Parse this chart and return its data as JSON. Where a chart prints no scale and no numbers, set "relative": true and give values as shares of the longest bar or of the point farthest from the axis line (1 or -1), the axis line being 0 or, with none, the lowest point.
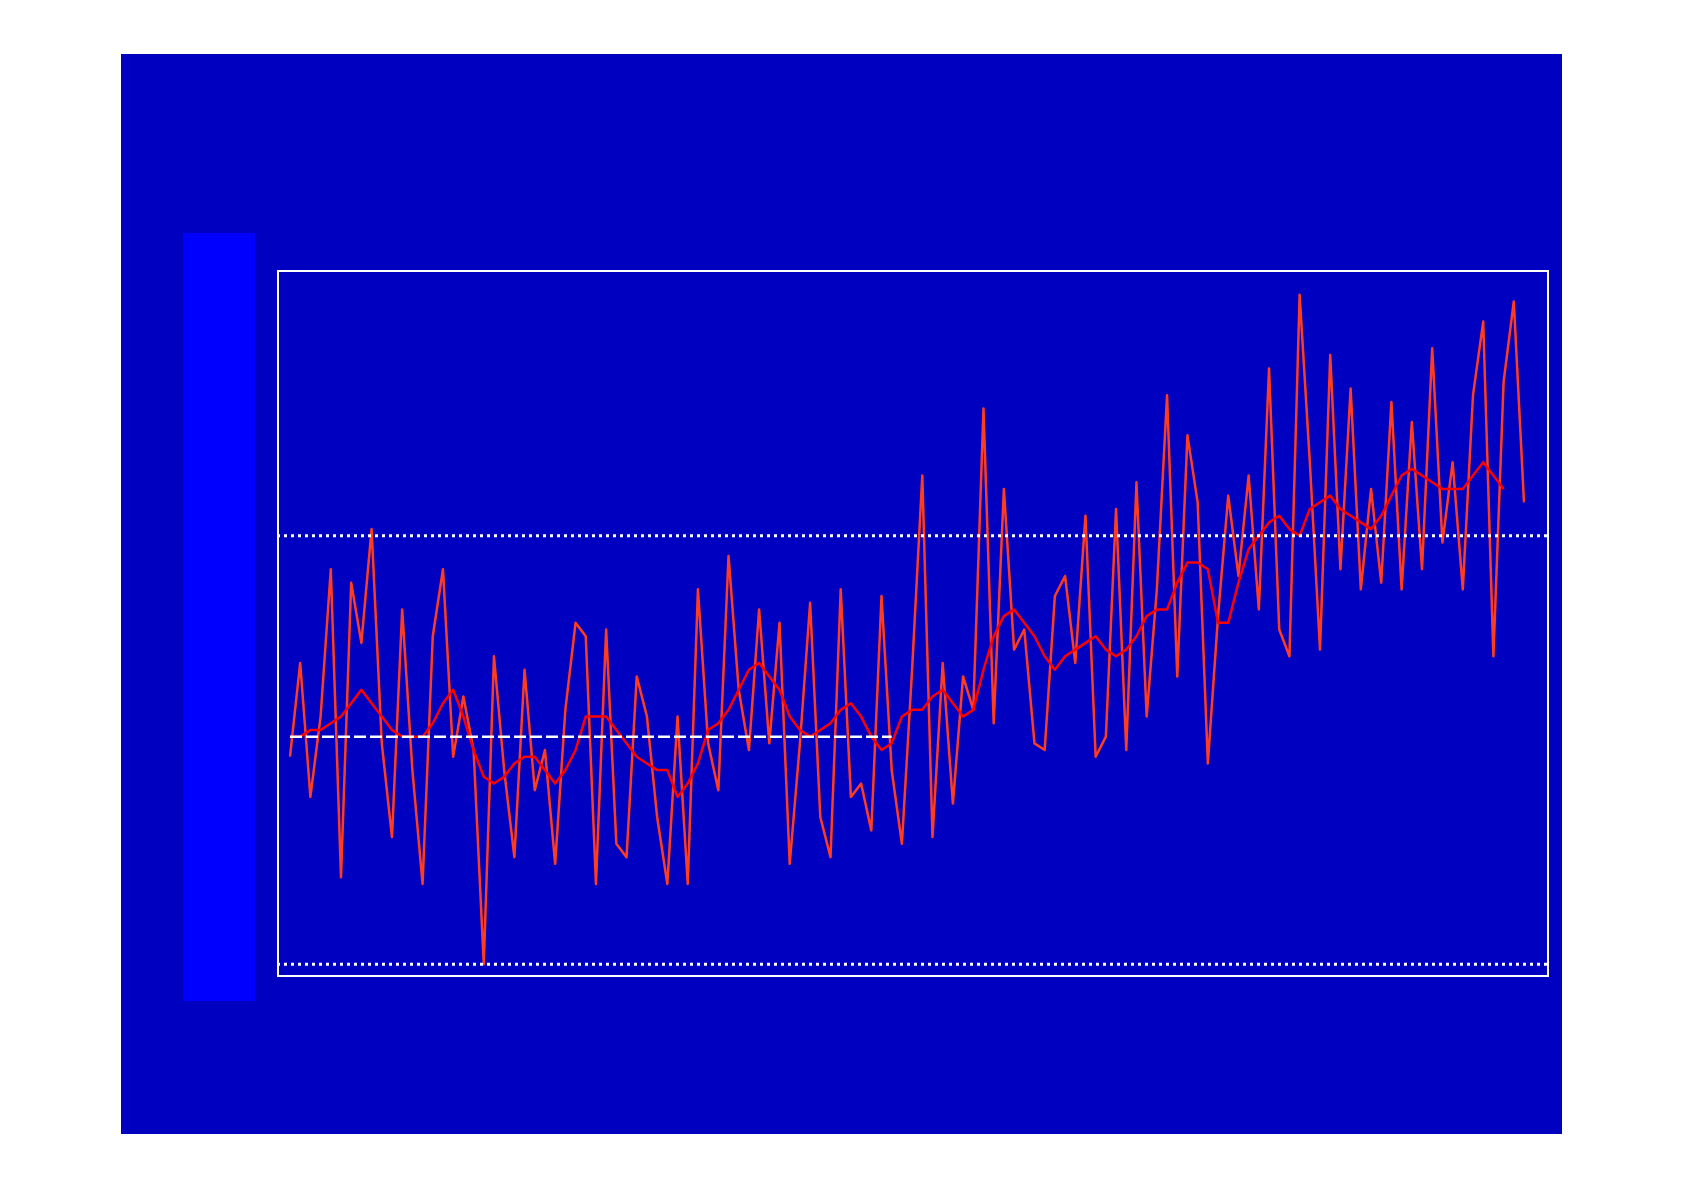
{
  "chart_data": {
    "type": "line",
    "relative": true,
    "marker": "none",
    "categories": [
      null,
      null,
      null,
      null,
      null,
      null,
      null,
      null,
      null,
      null,
      null,
      null,
      null,
      null,
      null,
      null,
      null,
      null,
      null,
      null,
      null,
      null,
      null,
      null,
      null,
      null,
      null,
      null,
      null,
      null,
      null,
      null,
      null,
      null,
      null,
      null,
      null,
      null,
      null,
      null,
      null,
      null,
      null,
      null,
      null,
      null,
      null,
      null,
      null,
      null,
      null,
      null,
      null,
      null,
      null,
      null,
      null,
      null,
      null,
      null,
      null,
      null,
      null,
      null,
      null,
      null,
      null,
      null,
      null,
      null,
      null,
      null,
      null,
      null,
      null,
      null,
      null,
      null,
      null,
      null,
      null,
      null,
      null,
      null,
      null,
      null,
      null,
      null,
      null,
      null,
      null,
      null,
      null,
      null,
      null,
      null,
      null,
      null,
      null,
      null,
      null,
      null,
      null,
      null,
      null,
      null,
      null,
      null,
      null,
      null,
      null,
      null,
      null,
      null,
      null,
      null,
      null,
      null,
      null,
      null,
      null,
      null
    ],
    "series": [
      {
        "type": "line",
        "color": "#ff3c1e",
        "line_style": "solid",
        "values": [
          0.31,
          0.45,
          0.25,
          0.37,
          0.59,
          0.13,
          0.57,
          0.48,
          0.65,
          0.33,
          0.19,
          0.53,
          0.29,
          0.12,
          0.49,
          0.59,
          0.31,
          0.4,
          0.32,
          0.0,
          0.46,
          0.29,
          0.16,
          0.44,
          0.26,
          0.32,
          0.15,
          0.38,
          0.51,
          0.49,
          0.12,
          0.5,
          0.18,
          0.16,
          0.43,
          0.37,
          0.22,
          0.12,
          0.37,
          0.12,
          0.56,
          0.33,
          0.26,
          0.61,
          0.41,
          0.32,
          0.53,
          0.33,
          0.51,
          0.15,
          0.33,
          0.54,
          0.22,
          0.16,
          0.56,
          0.25,
          0.27,
          0.2,
          0.55,
          0.29,
          0.18,
          0.44,
          0.73,
          0.19,
          0.45,
          0.24,
          0.43,
          0.38,
          0.83,
          0.36,
          0.71,
          0.47,
          0.5,
          0.33,
          0.32,
          0.55,
          0.58,
          0.45,
          0.67,
          0.31,
          0.34,
          0.68,
          0.32,
          0.72,
          0.37,
          0.56,
          0.85,
          0.43,
          0.79,
          0.69,
          0.3,
          0.52,
          0.7,
          0.58,
          0.73,
          0.53,
          0.89,
          0.5,
          0.46,
          1.0,
          0.75,
          0.47,
          0.91,
          0.59,
          0.86,
          0.56,
          0.71,
          0.57,
          0.84,
          0.56,
          0.81,
          0.59,
          0.92,
          0.63,
          0.75,
          0.56,
          0.85,
          0.96,
          0.46,
          0.87,
          0.99,
          0.69
        ]
      },
      {
        "type": "line",
        "color": "#ff0000",
        "line_style": "solid",
        "values": [
          0.34,
          0.34,
          0.35,
          0.35,
          0.36,
          0.37,
          0.39,
          0.41,
          0.39,
          0.37,
          0.35,
          0.34,
          0.34,
          0.34,
          0.36,
          0.39,
          0.41,
          0.37,
          0.32,
          0.28,
          0.27,
          0.28,
          0.3,
          0.31,
          0.31,
          0.29,
          0.27,
          0.29,
          0.32,
          0.37,
          0.37,
          0.37,
          0.35,
          0.33,
          0.31,
          0.3,
          0.29,
          0.29,
          0.25,
          0.27,
          0.3,
          0.35,
          0.36,
          0.38,
          0.41,
          0.44,
          0.45,
          0.43,
          0.41,
          0.37,
          0.35,
          0.34,
          0.35,
          0.36,
          0.38,
          0.39,
          0.37,
          0.34,
          0.32,
          0.33,
          0.37,
          0.38,
          0.38,
          0.4,
          0.41,
          0.39,
          0.37,
          0.38,
          0.44,
          0.49,
          0.52,
          0.53,
          0.51,
          0.49,
          0.46,
          0.44,
          0.46,
          0.47,
          0.48,
          0.49,
          0.47,
          0.46,
          0.47,
          0.49,
          0.52,
          0.53,
          0.53,
          0.57,
          0.6,
          0.6,
          0.59,
          0.51,
          0.51,
          0.57,
          0.62,
          0.64,
          0.66,
          0.67,
          0.65,
          0.64,
          0.68,
          0.69,
          0.7,
          0.68,
          0.67,
          0.66,
          0.65,
          0.67,
          0.7,
          0.73,
          0.74,
          0.73,
          0.72,
          0.71,
          0.71,
          0.71,
          0.73,
          0.75,
          0.73,
          0.71,
          null,
          null
        ]
      },
      {
        "type": "line",
        "color": "#ffffff",
        "line_style": "dashed",
        "values": [
          0.34,
          0.34,
          0.34,
          0.34,
          0.34,
          0.34,
          0.34,
          0.34,
          0.34,
          0.34,
          0.34,
          0.34,
          0.34,
          0.34,
          0.34,
          0.34,
          0.34,
          0.34,
          0.34,
          0.34,
          0.34,
          0.34,
          0.34,
          0.34,
          0.34,
          0.34,
          0.34,
          0.34,
          0.34,
          0.34,
          0.34,
          0.34,
          0.34,
          0.34,
          0.34,
          0.34,
          0.34,
          0.34,
          0.34,
          0.34,
          0.34,
          0.34,
          0.34,
          0.34,
          0.34,
          0.34,
          0.34,
          0.34,
          0.34,
          0.34,
          0.34,
          0.34,
          0.34,
          0.34,
          0.34,
          0.34,
          0.34,
          0.34,
          0.34,
          0.34,
          null,
          null,
          null,
          null,
          null,
          null,
          null,
          null,
          null,
          null,
          null,
          null,
          null,
          null,
          null,
          null,
          null,
          null,
          null,
          null,
          null,
          null,
          null,
          null,
          null,
          null,
          null,
          null,
          null,
          null,
          null,
          null,
          null,
          null,
          null,
          null,
          null,
          null,
          null,
          null,
          null,
          null,
          null,
          null,
          null,
          null,
          null,
          null,
          null,
          null,
          null,
          null,
          null,
          null,
          null,
          null,
          null,
          null,
          null,
          null,
          null,
          null
        ]
      }
    ],
    "ref_lines": [
      {
        "axis": "y",
        "value": 0.64,
        "color": "#ffffff",
        "line_style": "dotted"
      },
      {
        "axis": "y",
        "value": 0,
        "color": "#ffffff",
        "line_style": "dotted"
      }
    ]
  }
}
